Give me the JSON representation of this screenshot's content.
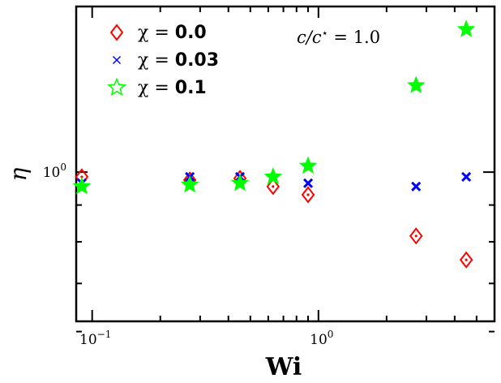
{
  "chart_data": {
    "type": "scatter",
    "xlabel": "Wi",
    "ylabel": "η",
    "xscale": "log",
    "yscale": "log",
    "xlim": [
      0.085,
      6.0
    ],
    "ylim": [
      0.62,
      1.7
    ],
    "x_ticks": [
      {
        "value": 0.1,
        "base": "10",
        "exp": "−1"
      },
      {
        "value": 1.0,
        "base": "10",
        "exp": "0"
      }
    ],
    "y_ticks": [
      {
        "value": 1.0,
        "base": "10",
        "exp": "0"
      }
    ],
    "annotation": {
      "prefix": "c/c",
      "sup": "⋆",
      "suffix": " = 1.0"
    },
    "legend_position": "top-left",
    "series": [
      {
        "name": "χ = 0.0",
        "label_prefix": "χ = ",
        "label_value": "0.0",
        "marker": "diamond-dot",
        "color": "#ff0000",
        "x": [
          0.09,
          0.27,
          0.45,
          0.63,
          0.9,
          2.7,
          4.5
        ],
        "y": [
          0.985,
          0.975,
          0.98,
          0.955,
          0.93,
          0.815,
          0.755
        ]
      },
      {
        "name": "χ = 0.03",
        "label_prefix": "χ = ",
        "label_value": "0.03",
        "marker": "cross",
        "color": "#0000ff",
        "x": [
          0.09,
          0.27,
          0.45,
          0.9,
          2.7,
          4.5
        ],
        "y": [
          0.965,
          0.985,
          0.985,
          0.965,
          0.955,
          0.985
        ]
      },
      {
        "name": "χ = 0.1",
        "label_prefix": "χ = ",
        "label_value": "0.1",
        "marker": "star",
        "color": "#00ff00",
        "x": [
          0.09,
          0.27,
          0.45,
          0.63,
          0.9,
          2.7,
          4.5
        ],
        "y": [
          0.955,
          0.96,
          0.965,
          0.985,
          1.02,
          1.32,
          1.58
        ]
      }
    ]
  }
}
